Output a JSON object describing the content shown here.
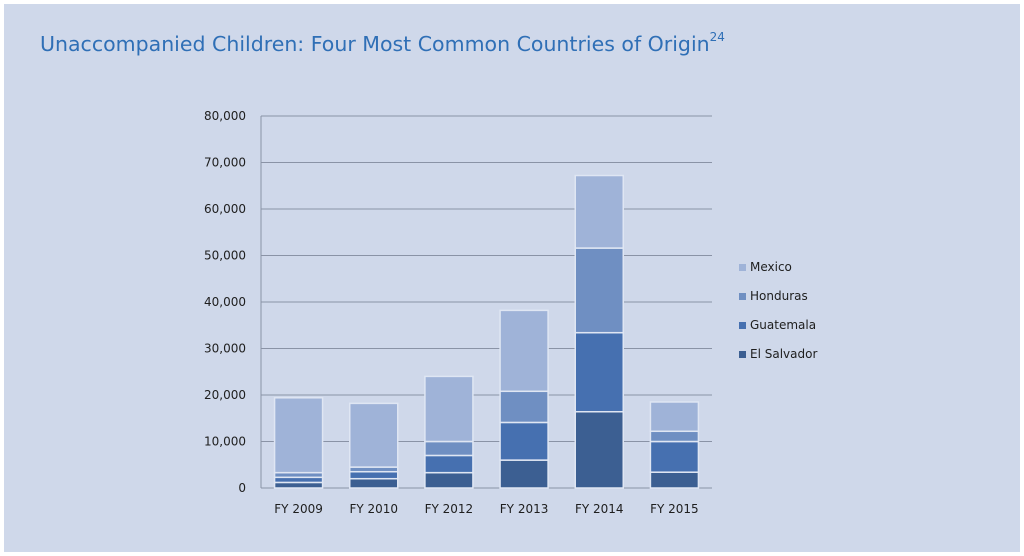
{
  "title": "Unaccompanied Children: Four Most Common Countries of Origin",
  "title_footnote": "24",
  "chart_data": {
    "type": "bar",
    "stacked": true,
    "categories": [
      "FY 2009",
      "FY 2010",
      "FY 2012",
      "FY 2013",
      "FY 2014",
      "FY 2015"
    ],
    "series": [
      {
        "name": "El Salvador",
        "color": "#3c5f92",
        "values": [
          1200,
          2000,
          3300,
          6000,
          16400,
          3400
        ]
      },
      {
        "name": "Guatemala",
        "color": "#4670b0",
        "values": [
          1100,
          1500,
          3700,
          8100,
          17000,
          6600
        ]
      },
      {
        "name": "Honduras",
        "color": "#6f8fc2",
        "values": [
          1000,
          1000,
          3000,
          6700,
          18200,
          2200
        ]
      },
      {
        "name": "Mexico",
        "color": "#9fb3d8",
        "values": [
          16100,
          13700,
          14000,
          17400,
          15600,
          6300
        ]
      }
    ],
    "ylim": [
      0,
      80000
    ],
    "yticks": [
      "0",
      "10,000",
      "20,000",
      "30,000",
      "40,000",
      "50,000",
      "60,000",
      "70,000",
      "80,000"
    ],
    "grid": true,
    "legend_position": "right"
  }
}
